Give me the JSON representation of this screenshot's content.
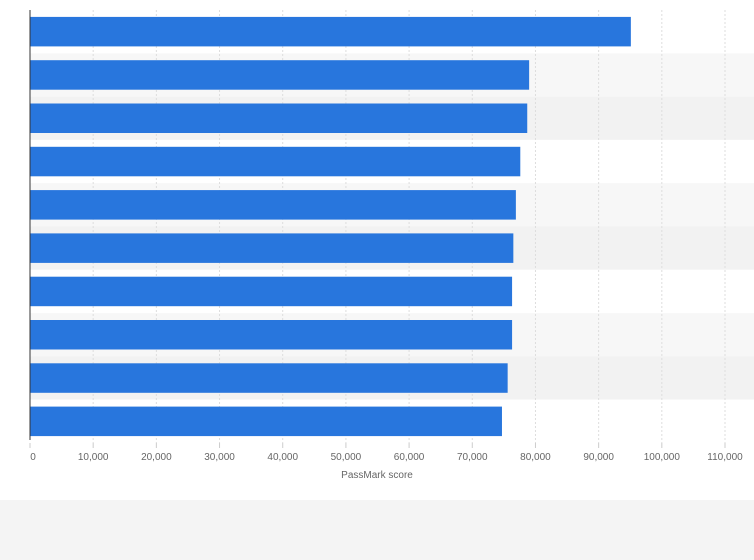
{
  "chart_data": {
    "type": "bar",
    "orientation": "horizontal",
    "title": "",
    "xlabel": "PassMark score",
    "ylabel": "",
    "categories": [
      "",
      "",
      "",
      "",
      "",
      "",
      "",
      "",
      "",
      ""
    ],
    "values": [
      95100,
      79000,
      78700,
      77600,
      76900,
      76500,
      76300,
      76300,
      75600,
      74700
    ],
    "xlim": [
      0,
      110000
    ],
    "xticks": [
      0,
      10000,
      20000,
      30000,
      40000,
      50000,
      60000,
      70000,
      80000,
      90000,
      100000,
      110000
    ],
    "xtick_labels": [
      "0",
      "10,000",
      "20,000",
      "30,000",
      "40,000",
      "50,000",
      "60,000",
      "70,000",
      "80,000",
      "90,000",
      "100,000",
      "110,000"
    ],
    "grid": true,
    "bar_color": "#2876dd",
    "band_colors": [
      "#ffffff",
      "#f7f7f7",
      "#f2f2f2"
    ]
  }
}
